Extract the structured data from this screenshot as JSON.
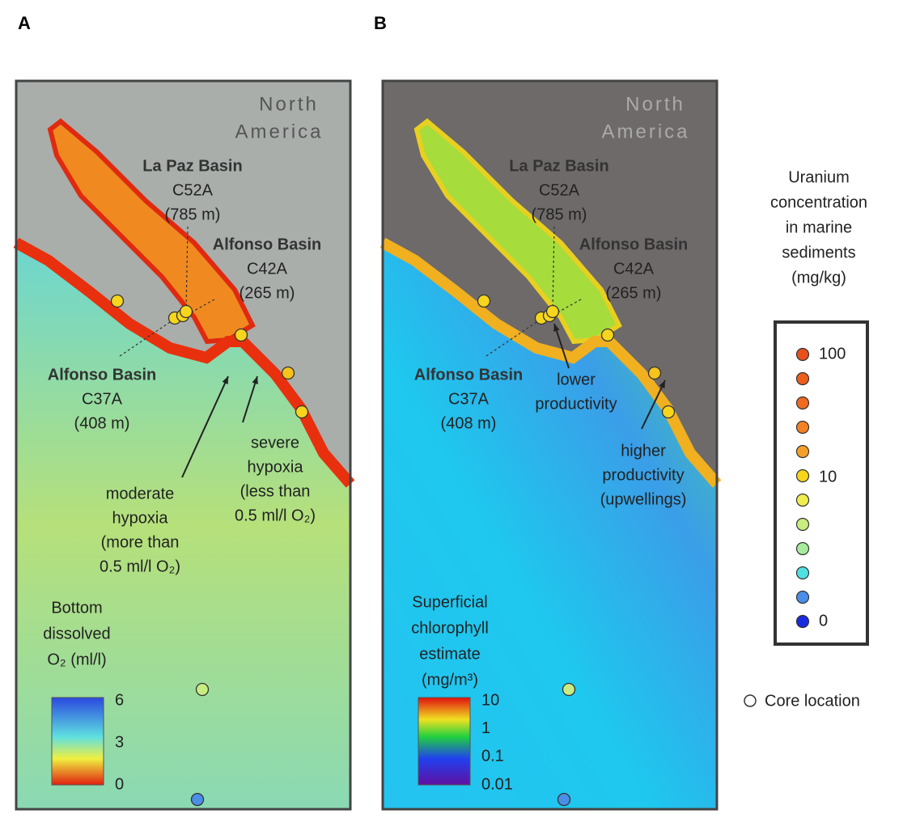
{
  "panel_labels": [
    "A",
    "B"
  ],
  "panels": [
    {
      "region": [
        "North",
        "America"
      ],
      "sites": [
        [
          "La Paz Basin",
          "C52A",
          "(785 m)"
        ],
        [
          "Alfonso Basin",
          "C42A",
          "(265 m)"
        ],
        [
          "Alfonso Basin",
          "C37A",
          "(408 m)"
        ]
      ],
      "notes": [
        [
          "severe",
          "hypoxia",
          "(less than",
          "0.5 ml/l O₂)"
        ],
        [
          "moderate",
          "hypoxia",
          "(more than",
          "0.5 ml/l O₂)"
        ]
      ],
      "scale_title": [
        "Bottom",
        "dissolved",
        "O₂ (ml/l)"
      ],
      "scale_labels": [
        "6",
        "3",
        "0"
      ]
    },
    {
      "region": [
        "North",
        "America"
      ],
      "sites": [
        [
          "La Paz Basin",
          "C52A",
          "(785 m)"
        ],
        [
          "Alfonso Basin",
          "C42A",
          "(265 m)"
        ],
        [
          "Alfonso Basin",
          "C37A",
          "(408 m)"
        ]
      ],
      "notes": [
        [
          "lower",
          "productivity"
        ],
        [
          "higher",
          "productivity",
          "(upwellings)"
        ]
      ],
      "scale_title": [
        "Superficial",
        "chlorophyll",
        "estimate",
        "(mg/m³)"
      ],
      "scale_labels": [
        "10",
        "1",
        "0.1",
        "0.01"
      ]
    }
  ],
  "legend": {
    "title": [
      "Uranium",
      "concentration",
      "in marine",
      "sediments",
      "(mg/kg)"
    ],
    "labels": [
      "100",
      "10",
      "0"
    ],
    "core": "Core location"
  }
}
